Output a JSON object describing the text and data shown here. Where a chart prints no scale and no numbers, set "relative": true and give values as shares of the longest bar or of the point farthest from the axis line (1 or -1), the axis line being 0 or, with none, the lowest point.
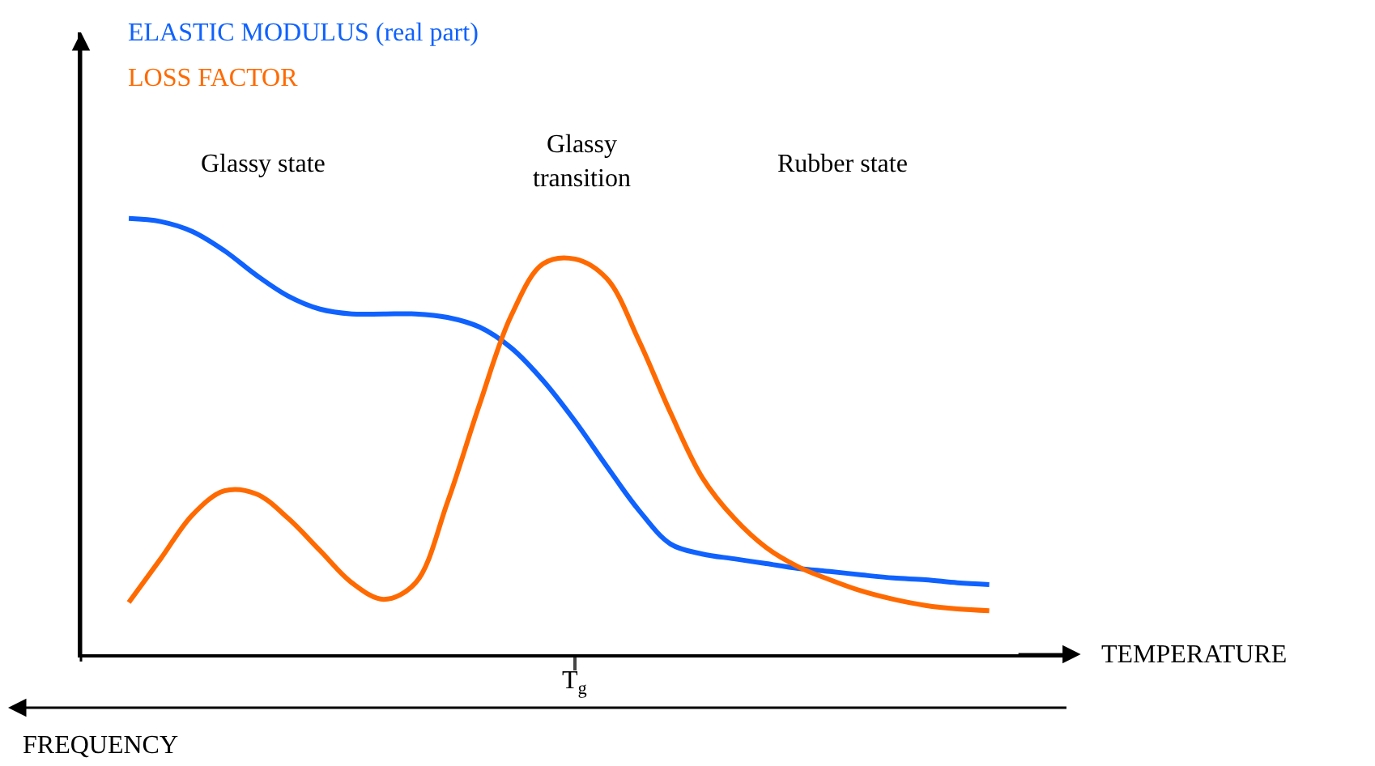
{
  "chart_data": {
    "type": "line",
    "relative": true,
    "xlabel": "TEMPERATURE",
    "categories": [
      null,
      null,
      null,
      null,
      null,
      null,
      null,
      null,
      null,
      null,
      null,
      null,
      null,
      null,
      null,
      null,
      null,
      null,
      null,
      null,
      null,
      null,
      null,
      null,
      null,
      null,
      null,
      null
    ],
    "series": [
      {
        "name": "ELASTIC MODULUS (real part)",
        "color": "#0f62fe",
        "values": [
          1.0,
          0.993,
          0.97,
          0.926,
          0.87,
          0.822,
          0.792,
          0.781,
          0.781,
          0.781,
          0.773,
          0.751,
          0.703,
          0.628,
          0.535,
          0.431,
          0.331,
          0.253,
          0.23,
          0.219,
          0.208,
          0.197,
          0.19,
          0.182,
          0.175,
          0.171,
          0.164,
          0.16
        ]
      },
      {
        "name": "LOSS FACTOR",
        "color": "#ff6a00",
        "values": [
          0.119,
          0.219,
          0.32,
          0.375,
          0.368,
          0.312,
          0.238,
          0.164,
          0.126,
          0.164,
          0.349,
          0.572,
          0.777,
          0.896,
          0.907,
          0.862,
          0.721,
          0.554,
          0.405,
          0.312,
          0.245,
          0.201,
          0.171,
          0.145,
          0.126,
          0.112,
          0.104,
          0.1
        ]
      }
    ],
    "annotations": [
      "T$_{g}$",
      "Glassy state",
      "Glassy\ntransition",
      "Rubber state",
      "FREQUENCY"
    ],
    "marker": "none",
    "line_style": "solid"
  }
}
